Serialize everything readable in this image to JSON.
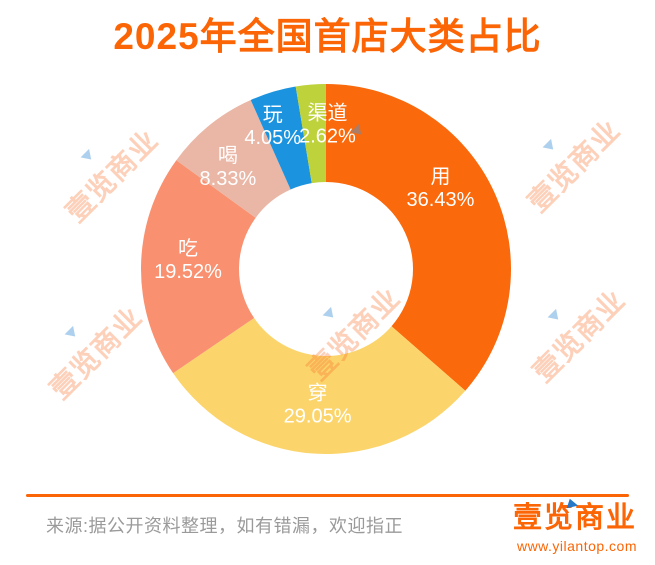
{
  "title": "2025年全国首店大类占比",
  "chart_data": {
    "type": "pie",
    "subtype": "donut",
    "title": "2025年全国首店大类占比",
    "start_angle_deg": 0,
    "direction": "clockwise",
    "inner_radius_ratio": 0.47,
    "label_color": "#FFFFFF",
    "label_format": "{name} {value}%",
    "legend": "none",
    "slices": [
      {
        "name": "用",
        "value": 36.43,
        "color": "#FA690B"
      },
      {
        "name": "穿",
        "value": 29.05,
        "color": "#FBD56C"
      },
      {
        "name": "吃",
        "value": 19.52,
        "color": "#F9906F"
      },
      {
        "name": "喝",
        "value": 8.33,
        "color": "#EAB6A5"
      },
      {
        "name": "玩",
        "value": 4.05,
        "color": "#1B93DE"
      },
      {
        "name": "渠道",
        "value": 2.62,
        "color": "#BED23C"
      }
    ]
  },
  "watermark": {
    "text": "壹览商业"
  },
  "footer": {
    "source_text": "来源:据公开资料整理，如有错漏，欢迎指正",
    "brand_name": "壹览商业",
    "brand_url": "www.yilantop.com"
  },
  "colors": {
    "accent_orange": "#FB6505",
    "source_gray": "#9A9A9A",
    "brand_blue": "#2878C8",
    "background": "#FFFFFF"
  }
}
